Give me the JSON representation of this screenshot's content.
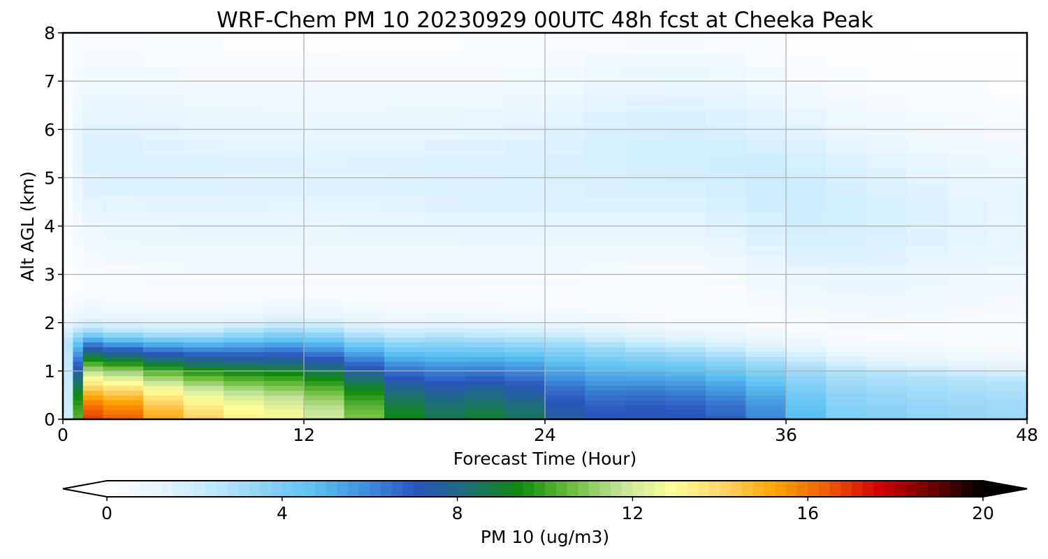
{
  "chart_data": {
    "type": "heatmap",
    "title": "WRF-Chem PM 10  20230929 00UTC 48h fcst at Cheeka Peak",
    "xlabel": "Forecast Time (Hour)",
    "ylabel": "Alt AGL (km)",
    "xlim": [
      0,
      48
    ],
    "ylim": [
      0,
      8
    ],
    "x_ticks": [
      0,
      12,
      24,
      36,
      48
    ],
    "y_ticks": [
      0,
      1,
      2,
      3,
      4,
      5,
      6,
      7,
      8
    ],
    "grid": true,
    "colorbar": {
      "label": "PM 10  (ug/m3)",
      "range": [
        0,
        20
      ],
      "ticks": [
        0,
        4,
        8,
        12,
        16,
        20
      ],
      "extend": "both",
      "palette": [
        "#ffffff",
        "#e6f5ff",
        "#c2e9fc",
        "#8fd3f7",
        "#5cc2f2",
        "#3f8fdc",
        "#2a55be",
        "#1e6e78",
        "#0e8a0e",
        "#6dbd3c",
        "#c5e59a",
        "#ffff99",
        "#ffd266",
        "#ffa200",
        "#ee5a00",
        "#cc0000",
        "#6e0000",
        "#000000"
      ]
    },
    "x": [
      0,
      0.5,
      1,
      2,
      4,
      6,
      8,
      10,
      12,
      14,
      16,
      18,
      20,
      22,
      24,
      26,
      28,
      30,
      32,
      34,
      36,
      38,
      40,
      42,
      44,
      46,
      48
    ],
    "y": [
      0,
      0.1,
      0.2,
      0.3,
      0.4,
      0.5,
      0.6,
      0.7,
      0.8,
      0.9,
      1.0,
      1.1,
      1.2,
      1.3,
      1.4,
      1.5,
      1.6,
      1.7,
      1.8,
      1.9,
      2.0,
      2.1,
      2.2,
      2.3,
      2.4,
      2.5,
      2.6,
      2.8,
      3.0,
      3.2,
      3.4,
      3.6,
      3.8,
      4.0,
      4.3,
      4.6,
      4.9,
      5.2,
      5.5,
      5.8,
      6.1,
      6.4,
      6.7,
      7.0,
      7.3,
      7.6,
      8.0
    ],
    "surface_max": [
      0,
      4,
      16.5,
      17,
      15.5,
      14.5,
      13.5,
      13,
      12.5,
      11.5,
      10,
      8.5,
      8.8,
      9,
      8,
      7,
      7.2,
      7.3,
      7,
      6.5,
      5.5,
      4,
      3.8,
      3.6,
      3.4,
      3.3,
      3.2
    ],
    "layer_depth_km": [
      1.6,
      1.7,
      1.9,
      1.85,
      1.8,
      1.8,
      1.8,
      1.9,
      1.9,
      1.85,
      1.7,
      1.75,
      1.75,
      1.7,
      1.7,
      1.65,
      1.55,
      1.5,
      1.45,
      1.35,
      1.25,
      1.1,
      1.0,
      0.95,
      0.9,
      0.85,
      0.8
    ],
    "aloft_max": [
      0.2,
      0.6,
      1.4,
      1.5,
      1.5,
      1.45,
      1.4,
      1.4,
      1.35,
      1.35,
      1.4,
      1.45,
      1.5,
      1.55,
      1.6,
      1.7,
      1.85,
      1.9,
      1.9,
      2.0,
      2.1,
      2.0,
      1.8,
      1.55,
      1.35,
      1.2,
      1.1
    ],
    "aloft_center_km": [
      5.2,
      5.4,
      5.4,
      5.3,
      5.2,
      5.1,
      5.0,
      5.0,
      5.0,
      5.0,
      5.0,
      5.0,
      5.0,
      5.0,
      5.1,
      5.3,
      5.4,
      5.5,
      5.4,
      5.1,
      4.7,
      4.5,
      4.3,
      4.2,
      4.2,
      4.2,
      4.2
    ]
  }
}
